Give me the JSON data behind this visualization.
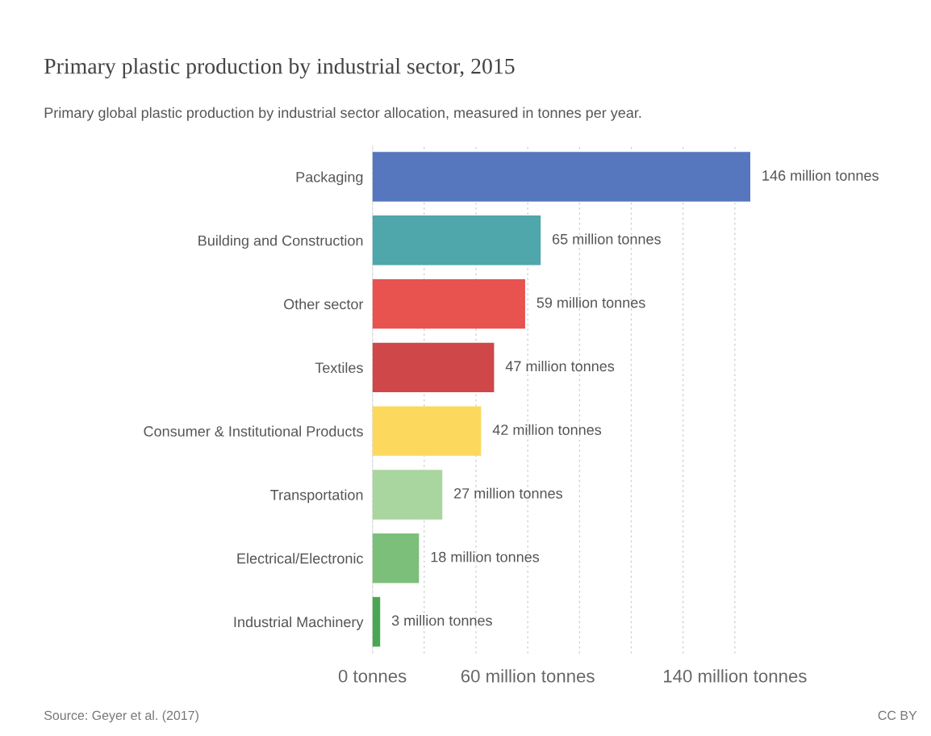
{
  "chart_data": {
    "type": "bar",
    "orientation": "horizontal",
    "title": "Primary plastic production by industrial sector, 2015",
    "subtitle": "Primary global plastic production by industrial sector allocation, measured in tonnes per year.",
    "categories": [
      "Packaging",
      "Building and Construction",
      "Other sector",
      "Textiles",
      "Consumer & Institutional Products",
      "Transportation",
      "Electrical/Electronic",
      "Industrial Machinery"
    ],
    "values": [
      146,
      65,
      59,
      47,
      42,
      27,
      18,
      3
    ],
    "colors": [
      "#5677bd",
      "#4fa6ab",
      "#e8524f",
      "#cf4749",
      "#fcd95d",
      "#a9d59f",
      "#7cbf7a",
      "#4ba654"
    ],
    "value_labels": [
      "146 million tonnes",
      "65 million tonnes",
      "59 million tonnes",
      "47 million tonnes",
      "42 million tonnes",
      "27 million tonnes",
      "18 million tonnes",
      "3 million tonnes"
    ],
    "xlim": [
      0,
      146
    ],
    "xticks": [
      {
        "value": 0,
        "label": "0 tonnes"
      },
      {
        "value": 20,
        "label": null
      },
      {
        "value": 40,
        "label": null
      },
      {
        "value": 60,
        "label": "60 million tonnes"
      },
      {
        "value": 80,
        "label": null
      },
      {
        "value": 100,
        "label": null
      },
      {
        "value": 120,
        "label": null
      },
      {
        "value": 140,
        "label": "140 million tonnes"
      }
    ],
    "grid": "x",
    "annotations": [
      "Source: Geyer et al. (2017)",
      "CC BY"
    ]
  }
}
